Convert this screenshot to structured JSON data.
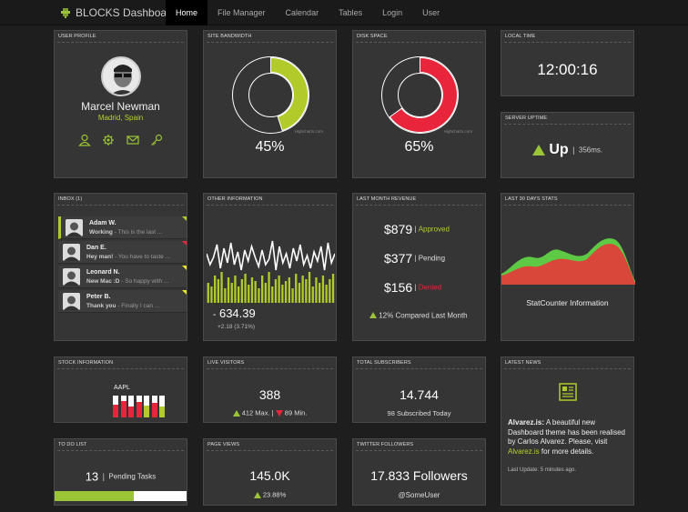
{
  "nav": {
    "brand": "BLOCKS Dashboard",
    "items": [
      "Home",
      "File Manager",
      "Calendar",
      "Tables",
      "Login",
      "User"
    ]
  },
  "profile": {
    "title": "USER PROFILE",
    "name": "Marcel Newman",
    "location": "Madrid, Spain",
    "icons": [
      "user-icon",
      "gear-icon",
      "mail-icon",
      "key-icon"
    ]
  },
  "bandwidth": {
    "title": "SITE BANDWIDTH",
    "value": "45%",
    "fraction": 0.45,
    "credit": "Highcharts.com",
    "color": "#b2cb2a"
  },
  "disk": {
    "title": "DISK SPACE",
    "value": "65%",
    "fraction": 0.65,
    "credit": "Highcharts.com",
    "color": "#e8253a"
  },
  "time": {
    "title": "LOCAL TIME",
    "value": "12:00:16"
  },
  "uptime": {
    "title": "SERVER UPTIME",
    "status": "Up",
    "ms": "356ms."
  },
  "inbox": {
    "title": "INBOX (1)",
    "messages": [
      {
        "from": "Adam W.",
        "subject": "Working",
        "preview": " - This is the last ...",
        "flag": "#b2cb2a",
        "unread": true
      },
      {
        "from": "Dan E.",
        "subject": "Hey man!",
        "preview": " - You have to taste ...",
        "flag": "#e8253a",
        "unread": false
      },
      {
        "from": "Leonard N.",
        "subject": "New Mac :D",
        "preview": " - So happy with ...",
        "flag": "#e5e52a",
        "unread": false
      },
      {
        "from": "Peter B.",
        "subject": "Thank you",
        "preview": " - Finally I can ...",
        "flag": "#e5e52a",
        "unread": false
      }
    ]
  },
  "other": {
    "title": "OTHER INFORMATION",
    "value": "634.39",
    "change": "+2.18 (3.71%)",
    "line": [
      18,
      30,
      22,
      8,
      34,
      12,
      28,
      6,
      30,
      16,
      36,
      14,
      26,
      10,
      22,
      32,
      14,
      30,
      24,
      4,
      36,
      10,
      28,
      18,
      34,
      12,
      26,
      8,
      30,
      20,
      34,
      16,
      26,
      10,
      36,
      6,
      28,
      18
    ],
    "bars": [
      22,
      18,
      30,
      26,
      34,
      16,
      28,
      22,
      30,
      18,
      26,
      32,
      20,
      28,
      24,
      16,
      30,
      22,
      34,
      18,
      26,
      30,
      20,
      24,
      28,
      16,
      32,
      22,
      30,
      26,
      34,
      18,
      28,
      22,
      30,
      20,
      26,
      32
    ]
  },
  "revenue": {
    "title": "LAST MONTH REVENUE",
    "rows": [
      {
        "amount": "$879",
        "status": "Approved",
        "color": "#b2cb2a"
      },
      {
        "amount": "$377",
        "status": "Pending",
        "color": "#dddddd"
      },
      {
        "amount": "$156",
        "status": "Denied",
        "color": "#e8253a"
      }
    ],
    "compare": "12% Compared Last Month"
  },
  "stats30": {
    "title": "LAST 30 DAYS STATS",
    "caption": "StatCounter Information",
    "colors": {
      "green": "#5ec944",
      "red": "#d9473a"
    }
  },
  "stock": {
    "title": "STOCK INFORMATION",
    "symbol": "AAPL",
    "bars": [
      {
        "level": 0.6,
        "color": "#e8253a"
      },
      {
        "level": 0.75,
        "color": "#e8253a"
      },
      {
        "level": 0.5,
        "color": "#e8253a"
      },
      {
        "level": 0.7,
        "color": "#e8253a"
      },
      {
        "level": 0.55,
        "color": "#b2cb2a"
      },
      {
        "level": 0.65,
        "color": "#e8253a"
      },
      {
        "level": 0.5,
        "color": "#b2cb2a"
      }
    ]
  },
  "visitors": {
    "title": "LIVE VISITORS",
    "value": "388",
    "max": "412 Max.",
    "min": "89 Min."
  },
  "subscribers": {
    "title": "TOTAL SUBSCRIBERS",
    "value": "14.744",
    "today": "98 Subscribed Today"
  },
  "news": {
    "title": "LATEST NEWS",
    "headline": "Alvarez.is:",
    "text1": " A beautiful new Dashboard theme has been realised by Carlos Alvarez. Please, visit ",
    "link": "Alvarez.is",
    "text2": " for more details.",
    "updated": "Last Update: 5 minutes ago."
  },
  "todo": {
    "title": "TO DO LIST",
    "count": "13",
    "label": "Pending Tasks",
    "progress": 0.6
  },
  "pageviews": {
    "title": "PAGE VIEWS",
    "value": "145.0K",
    "change": "23.88%"
  },
  "twitter": {
    "title": "TWITTER FOLLOWERS",
    "value": "17.833 Followers",
    "handle": "@SomeUser"
  }
}
